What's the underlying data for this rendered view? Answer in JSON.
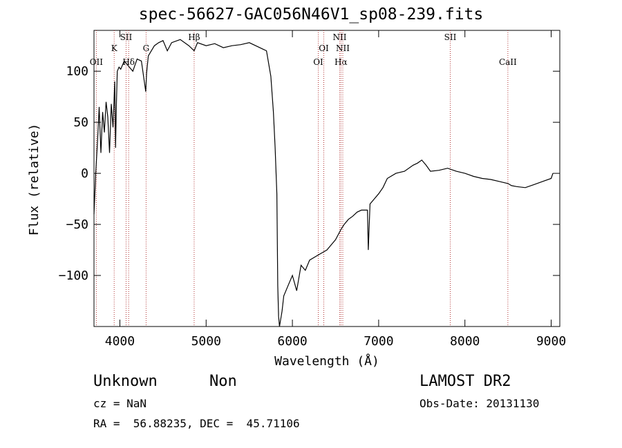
{
  "chart_data": {
    "type": "line",
    "title": "spec-56627-GAC056N46V1_sp08-239.fits",
    "xlabel": "Wavelength (Å)",
    "ylabel": "Flux (relative)",
    "xlim": [
      3700,
      9100
    ],
    "ylim": [
      -150,
      140
    ],
    "xticks": [
      4000,
      5000,
      6000,
      7000,
      8000,
      9000
    ],
    "yticks": [
      100,
      50,
      0,
      -50,
      -100
    ],
    "grid": false,
    "series": [
      {
        "x": [
          3700,
          3720,
          3740,
          3760,
          3780,
          3800,
          3820,
          3840,
          3860,
          3880,
          3900,
          3920,
          3940,
          3950,
          3960,
          3970,
          3990,
          4010,
          4050,
          4100,
          4150,
          4200,
          4250,
          4300,
          4310,
          4330,
          4400,
          4450,
          4500,
          4550,
          4600,
          4700,
          4800,
          4861,
          4900,
          5000,
          5100,
          5200,
          5300,
          5400,
          5500,
          5600,
          5700,
          5750,
          5780,
          5800,
          5820,
          5830,
          5840,
          5850,
          5880,
          5900,
          5950,
          6000,
          6050,
          6100,
          6150,
          6200,
          6300,
          6400,
          6450,
          6500,
          6563,
          6600,
          6650,
          6700,
          6750,
          6800,
          6870,
          6880,
          6900,
          6950,
          7000,
          7050,
          7100,
          7200,
          7300,
          7400,
          7450,
          7500,
          7550,
          7600,
          7700,
          7800,
          7900,
          8000,
          8100,
          8200,
          8300,
          8400,
          8500,
          8540,
          8600,
          8700,
          8800,
          8900,
          9000,
          9020
        ],
        "y": [
          -40,
          0,
          30,
          65,
          20,
          60,
          40,
          70,
          55,
          20,
          68,
          45,
          90,
          25,
          70,
          100,
          104,
          102,
          110,
          105,
          100,
          112,
          110,
          80,
          98,
          115,
          125,
          128,
          130,
          120,
          128,
          131,
          125,
          120,
          128,
          125,
          127,
          123,
          125,
          126,
          128,
          124,
          120,
          95,
          60,
          25,
          -20,
          -110,
          -140,
          -150,
          -135,
          -120,
          -110,
          -100,
          -115,
          -90,
          -95,
          -85,
          -80,
          -75,
          -70,
          -65,
          -55,
          -50,
          -45,
          -42,
          -38,
          -36,
          -36,
          -75,
          -30,
          -25,
          -20,
          -14,
          -5,
          0,
          2,
          8,
          10,
          13,
          8,
          2,
          3,
          5,
          2,
          0,
          -3,
          -5,
          -6,
          -8,
          -10,
          -12,
          -13,
          -14,
          -11,
          -8,
          -5,
          0
        ]
      }
    ],
    "lines": [
      {
        "x": 3727,
        "label": "OII",
        "color": "#b03030"
      },
      {
        "x": 3934,
        "label": "K",
        "color": "#b03030"
      },
      {
        "x": 4072,
        "label": "SII",
        "color": "#b03030"
      },
      {
        "x": 4102,
        "label": "Hδ",
        "color": "#b03030"
      },
      {
        "x": 4304,
        "label": "G",
        "color": "#b03030"
      },
      {
        "x": 4861,
        "label": "Hβ",
        "color": "#b03030"
      },
      {
        "x": 6300,
        "label": "OI",
        "color": "#b03030"
      },
      {
        "x": 6364,
        "label": "OI",
        "color": "#b03030"
      },
      {
        "x": 6548,
        "label": "NII",
        "color": "#b03030"
      },
      {
        "x": 6563,
        "label": "Hα",
        "color": "#b03030"
      },
      {
        "x": 6584,
        "label": "NII",
        "color": "#b03030"
      },
      {
        "x": 7830,
        "label": "SII",
        "color": "#b03030"
      },
      {
        "x": 8498,
        "label": "CaII",
        "color": "#b03030"
      }
    ]
  },
  "info": {
    "object_class": "Unknown",
    "subclass": "Non",
    "survey": "LAMOST DR2",
    "cz": "cz = NaN",
    "obs_date": "Obs-Date: 20131130",
    "coords": "RA =  56.88235, DEC =  45.71106"
  }
}
